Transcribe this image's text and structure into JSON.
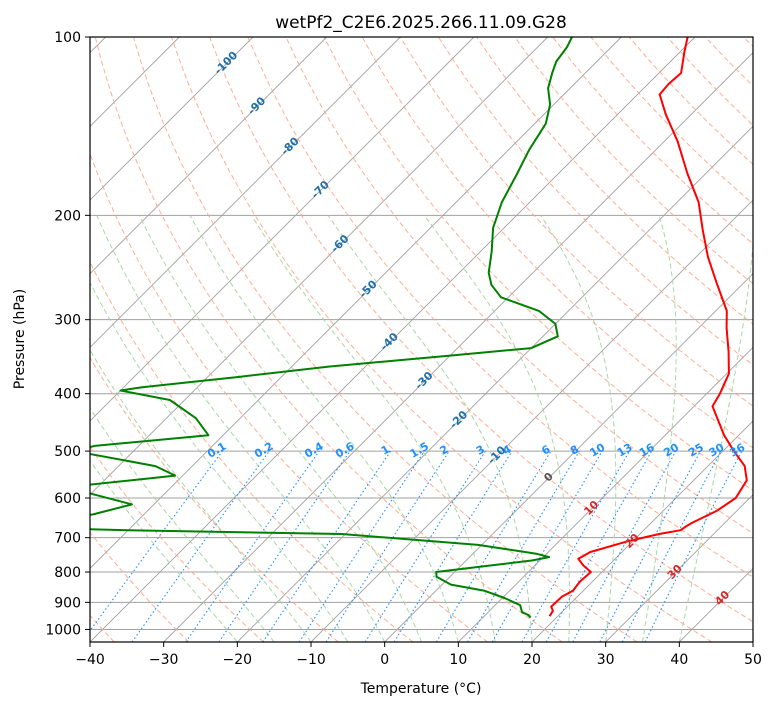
{
  "chart_data": {
    "type": "line",
    "subtype": "skew-T log-P diagram",
    "title": "wetPf2_C2E6.2025.266.11.09.G28",
    "xlabel": "Temperature (°C)",
    "ylabel": "Pressure (hPa)",
    "xlim": [
      -40,
      50
    ],
    "ylim": [
      1050,
      100
    ],
    "y_scale": "log",
    "x_ticks": [
      "−40",
      "−30",
      "−20",
      "−10",
      "0",
      "10",
      "20",
      "30",
      "40",
      "50"
    ],
    "y_ticks": [
      "100",
      "200",
      "300",
      "400",
      "500",
      "600",
      "700",
      "800",
      "900",
      "1000"
    ],
    "grid": true,
    "series": [
      {
        "role": "temperature",
        "color": "#ff0000",
        "points": [
          [
            18.9,
            950
          ],
          [
            18.6,
            930
          ],
          [
            17.8,
            915
          ],
          [
            17.9,
            880
          ],
          [
            18.6,
            860
          ],
          [
            18.3,
            830
          ],
          [
            18.5,
            800
          ],
          [
            16.6,
            780
          ],
          [
            15.0,
            760
          ],
          [
            15.7,
            740
          ],
          [
            19.3,
            710
          ],
          [
            22.6,
            690
          ],
          [
            25.0,
            680
          ],
          [
            25.2,
            670
          ],
          [
            25.6,
            660
          ],
          [
            27.3,
            630
          ],
          [
            28.1,
            600
          ],
          [
            27.2,
            560
          ],
          [
            25.0,
            530
          ],
          [
            21.5,
            500
          ],
          [
            18.0,
            470
          ],
          [
            12.5,
            420
          ],
          [
            11.8,
            400
          ],
          [
            10.3,
            370
          ],
          [
            7.3,
            340
          ],
          [
            3.8,
            310
          ],
          [
            1.5,
            290
          ],
          [
            -3.7,
            260
          ],
          [
            -8.4,
            235
          ],
          [
            -12.7,
            212
          ],
          [
            -17.1,
            190
          ],
          [
            -22.5,
            170
          ],
          [
            -28.2,
            150
          ],
          [
            -33.5,
            135
          ],
          [
            -37.0,
            125
          ],
          [
            -37.2,
            120
          ],
          [
            -37.0,
            115
          ],
          [
            -39.4,
            106
          ],
          [
            -41.0,
            100
          ]
        ]
      },
      {
        "role": "dewpoint",
        "color": "#008000",
        "points": [
          [
            16.5,
            955
          ],
          [
            15.8,
            945
          ],
          [
            14.6,
            935
          ],
          [
            13.4,
            910
          ],
          [
            10.3,
            885
          ],
          [
            6.5,
            860
          ],
          [
            1.2,
            840
          ],
          [
            -1.8,
            815
          ],
          [
            -2.5,
            800
          ],
          [
            2.2,
            785
          ],
          [
            8.9,
            765
          ],
          [
            10.8,
            755
          ],
          [
            8.6,
            745
          ],
          [
            -0.5,
            720
          ],
          [
            -20.5,
            690
          ],
          [
            -50.0,
            680
          ],
          [
            -70.0,
            670
          ],
          [
            -72.0,
            650
          ],
          [
            -57.0,
            640
          ],
          [
            -53.0,
            615
          ],
          [
            -60.0,
            590
          ],
          [
            -64.0,
            580
          ],
          [
            -61.5,
            570
          ],
          [
            -51.0,
            550
          ],
          [
            -55.0,
            530
          ],
          [
            -68.0,
            500
          ],
          [
            -66.0,
            490
          ],
          [
            -52.0,
            470
          ],
          [
            -56.0,
            440
          ],
          [
            -62.0,
            410
          ],
          [
            -70.0,
            395
          ],
          [
            -67.5,
            390
          ],
          [
            -56.0,
            375
          ],
          [
            -45.0,
            360
          ],
          [
            -30.0,
            345
          ],
          [
            -20.0,
            335
          ],
          [
            -18.0,
            320
          ],
          [
            -20.0,
            305
          ],
          [
            -24.0,
            290
          ],
          [
            -31.0,
            275
          ],
          [
            -34.0,
            262
          ],
          [
            -36.0,
            250
          ],
          [
            -38.5,
            230
          ],
          [
            -41.5,
            210
          ],
          [
            -43.8,
            190
          ],
          [
            -45.6,
            170
          ],
          [
            -47.2,
            155
          ],
          [
            -48.5,
            140
          ],
          [
            -50.5,
            130
          ],
          [
            -53.0,
            122
          ],
          [
            -54.5,
            115
          ],
          [
            -55.5,
            110
          ],
          [
            -56.0,
            104
          ],
          [
            -56.7,
            100
          ]
        ]
      }
    ],
    "dry_adiabat_labels": [
      "-100",
      "-90",
      "-80",
      "-70",
      "-60",
      "-50",
      "-40",
      "-30",
      "-20",
      "-10",
      "0",
      "10",
      "20",
      "30",
      "40"
    ],
    "mixing_ratio_labels": [
      "0.1",
      "0.2",
      "0.4",
      "0.6",
      "1",
      "1.5",
      "2",
      "3",
      "4",
      "6",
      "8",
      "10",
      "13",
      "16",
      "20",
      "25",
      "30",
      "36"
    ],
    "mixing_ratio_values": [
      0.1,
      0.2,
      0.4,
      0.6,
      1,
      1.5,
      2,
      3,
      4,
      6,
      8,
      10,
      13,
      16,
      20,
      25,
      30,
      36
    ],
    "colors": {
      "temperature": "#ff0000",
      "dewpoint": "#008000",
      "isotherm": "#a0a0a0",
      "dry_adiabat": "#ff9f80",
      "moist_adiabat": "#9fd39f",
      "mixing_ratio": "#1e90ff",
      "cold_adiabat_label": "#1f6fa8",
      "warm_adiabat_label": "#d62728",
      "freezing_label": "#555555"
    }
  }
}
